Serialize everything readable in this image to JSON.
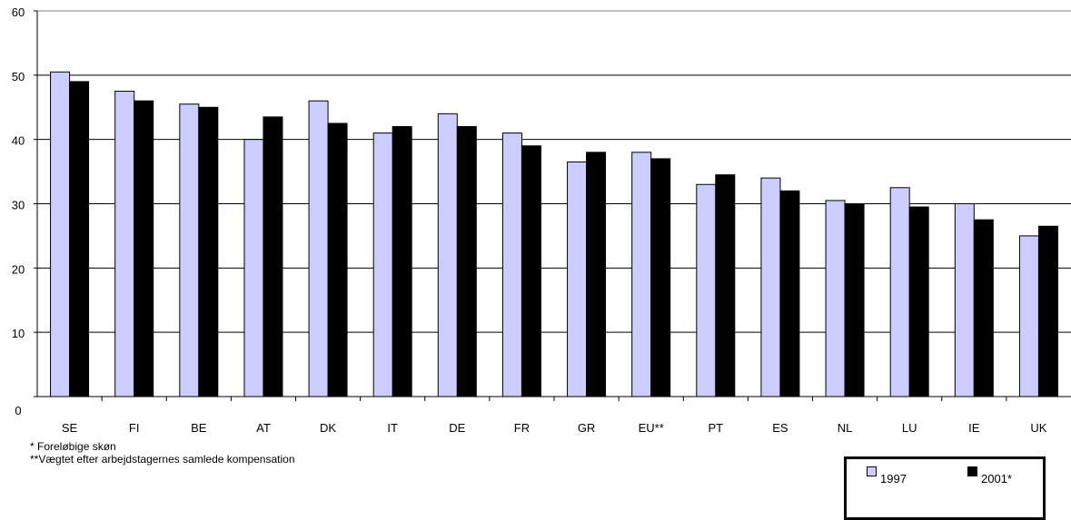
{
  "chart_data": {
    "type": "bar",
    "categories": [
      "SE",
      "FI",
      "BE",
      "AT",
      "DK",
      "IT",
      "DE",
      "FR",
      "GR",
      "EU**",
      "PT",
      "ES",
      "NL",
      "LU",
      "IE",
      "UK"
    ],
    "series": [
      {
        "name": "1997",
        "color": "#ccccff",
        "values": [
          50.5,
          47.5,
          45.5,
          40,
          46,
          41,
          44,
          41,
          36.5,
          38,
          33,
          34,
          30.5,
          32.5,
          30,
          25
        ]
      },
      {
        "name": "2001*",
        "color": "#000000",
        "values": [
          49,
          46,
          45,
          43.5,
          42.5,
          42,
          42,
          39,
          38,
          37,
          34.5,
          32,
          30,
          29.5,
          27.5,
          26.5
        ]
      }
    ],
    "y_ticks": [
      "0",
      "10",
      "20",
      "30",
      "40",
      "50",
      "60"
    ],
    "ylim": [
      0,
      60
    ],
    "grid": true,
    "legend_position": "bottom-right"
  },
  "notes": [
    "* Foreløbige skøn",
    "**Vægtet efter arbejdstagernes samlede kompensation"
  ]
}
